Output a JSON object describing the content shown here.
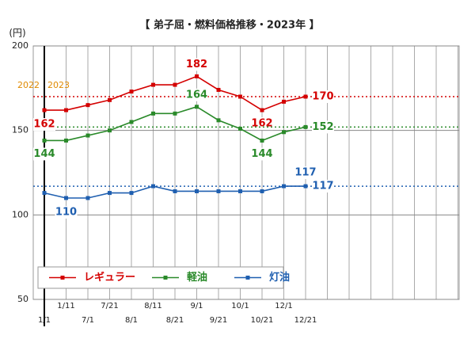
{
  "chart_data": {
    "type": "line",
    "title": "【 弟子屈・燃料価格推移・2023年 】",
    "y_label": "(円)",
    "annotations": [
      "2022",
      "2023"
    ],
    "annotation_color": "#e08a00",
    "categories": [
      "1/1",
      "1/11",
      "7/1",
      "7/21",
      "8/1",
      "8/11",
      "8/21",
      "9/1",
      "9/21",
      "10/1",
      "10/21",
      "12/1",
      "12/21",
      null,
      null,
      null,
      null,
      null,
      null,
      null
    ],
    "series": [
      {
        "name": "レギュラー",
        "color": "#d40000",
        "values": [
          162,
          162,
          165,
          168,
          173,
          177,
          177,
          182,
          174,
          170,
          162,
          167,
          170,
          null,
          null,
          null,
          null,
          null,
          null,
          null
        ]
      },
      {
        "name": "軽油",
        "color": "#2a8a2a",
        "values": [
          144,
          144,
          147,
          150,
          155,
          160,
          160,
          164,
          156,
          151,
          144,
          149,
          152,
          null,
          null,
          null,
          null,
          null,
          null,
          null
        ]
      },
      {
        "name": "灯油",
        "color": "#1f5fb0",
        "values": [
          113,
          110,
          110,
          113,
          113,
          117,
          114,
          114,
          114,
          114,
          114,
          117,
          117,
          null,
          null,
          null,
          null,
          null,
          null,
          null
        ]
      }
    ],
    "ylim": [
      50,
      200
    ],
    "yticks": [
      50,
      100,
      150,
      200
    ],
    "grid": true
  }
}
